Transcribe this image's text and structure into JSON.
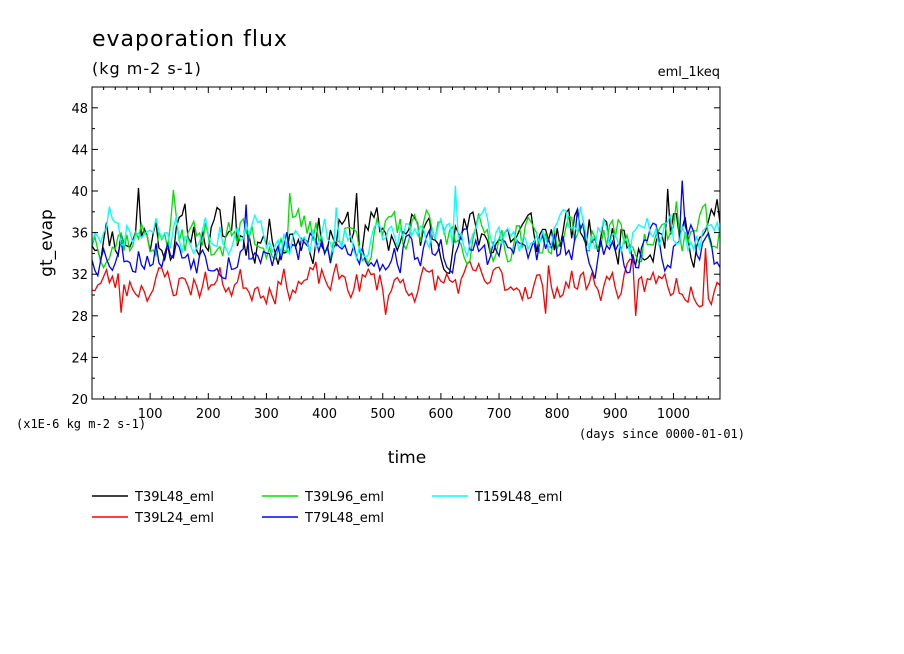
{
  "chart_data": {
    "type": "line",
    "title": "evaporation flux",
    "subtitle": "(kg m-2 s-1)",
    "tag": "eml_1keq",
    "xlabel": "time",
    "ylabel": "gt_evap",
    "y_scale_note": "(x1E-6 kg m-2 s-1)",
    "x_unit_note": "(days since 0000-01-01)",
    "xlim": [
      0,
      1080
    ],
    "ylim": [
      20,
      50
    ],
    "x_ticks": [
      100,
      200,
      300,
      400,
      500,
      600,
      700,
      800,
      900,
      1000
    ],
    "x_tick_labels": [
      "100",
      "200",
      "300",
      "400",
      "500",
      "600",
      "700",
      "800",
      "900",
      "1000"
    ],
    "y_ticks": [
      20,
      24,
      28,
      32,
      36,
      40,
      44,
      48
    ],
    "y_tick_labels": [
      "20",
      "24",
      "28",
      "32",
      "36",
      "40",
      "44",
      "48"
    ],
    "grid": false,
    "legend_position": "below",
    "x_step_days": 5,
    "series": [
      {
        "name": "T39L48_eml",
        "color": "#000000",
        "mean": 35.8,
        "amp": 1.6,
        "seed": 11,
        "peaks": [
          [
            80,
            40.3
          ],
          [
            245,
            39.5
          ],
          [
            455,
            39.8
          ],
          [
            990,
            40.2
          ],
          [
            1075,
            39.2
          ]
        ]
      },
      {
        "name": "T39L24_eml",
        "color": "#ff0000",
        "mean": 31.2,
        "amp": 1.1,
        "seed": 23,
        "peaks": [
          [
            50,
            28.3
          ],
          [
            505,
            28.1
          ],
          [
            780,
            28.2
          ],
          [
            935,
            28.0
          ],
          [
            1055,
            34.5
          ]
        ]
      },
      {
        "name": "T39L96_eml",
        "color": "#00e000",
        "mean": 35.6,
        "amp": 1.4,
        "seed": 37,
        "peaks": [
          [
            140,
            40.1
          ],
          [
            340,
            39.8
          ],
          [
            1005,
            39.0
          ]
        ]
      },
      {
        "name": "T79L48_eml",
        "color": "#0000ff",
        "mean": 34.2,
        "amp": 1.3,
        "seed": 53,
        "peaks": [
          [
            265,
            38.7
          ],
          [
            1015,
            41.0
          ],
          [
            835,
            38.3
          ]
        ]
      },
      {
        "name": "T159L48_eml",
        "color": "#00ffff",
        "mean": 35.7,
        "amp": 1.2,
        "seed": 71,
        "peaks": [
          [
            625,
            40.5
          ],
          [
            30,
            38.5
          ],
          [
            420,
            38.4
          ],
          [
            840,
            38.5
          ]
        ]
      }
    ]
  }
}
